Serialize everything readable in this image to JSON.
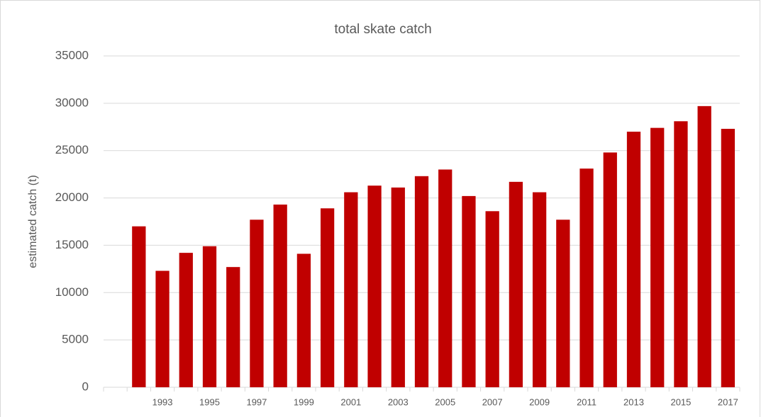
{
  "chart_data": {
    "type": "bar",
    "title": "total skate catch",
    "y_label": "estimated catch (t)",
    "categories": [
      null,
      null,
      "1993",
      null,
      "1995",
      null,
      "1997",
      null,
      "1999",
      null,
      "2001",
      null,
      "2003",
      null,
      "2005",
      null,
      "2007",
      null,
      "2009",
      null,
      "2011",
      null,
      "2013",
      null,
      "2015",
      null,
      "2017"
    ],
    "values": [
      null,
      17000,
      12300,
      14200,
      14900,
      12700,
      17700,
      19300,
      14100,
      18900,
      20600,
      21300,
      21100,
      22300,
      23000,
      20200,
      18600,
      21700,
      20600,
      17700,
      23100,
      24800,
      27000,
      27400,
      28100,
      29700,
      27300
    ],
    "color": "#c00000",
    "ylim": [
      0,
      35000
    ],
    "yticks": [
      0,
      5000,
      10000,
      15000,
      20000,
      25000,
      30000,
      35000
    ],
    "grid": true
  }
}
